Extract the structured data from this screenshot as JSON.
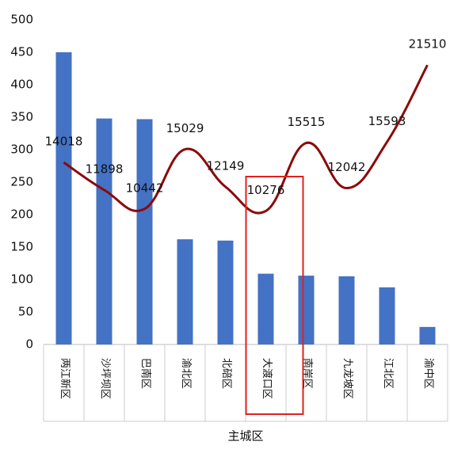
{
  "chart_data": {
    "type": "bar-line",
    "x_label": "主城区",
    "categories": [
      "两江新区",
      "沙坪坝区",
      "巴南区",
      "渝北区",
      "北碚区",
      "大渡口区",
      "南岸区",
      "九龙坡区",
      "江北区",
      "渝中区"
    ],
    "series": [
      {
        "type": "bar",
        "color": "#4472c4",
        "values": [
          450,
          348,
          347,
          162,
          160,
          109,
          106,
          105,
          88,
          27
        ]
      },
      {
        "type": "line",
        "axis": "y2",
        "color": "#8b0a0a",
        "values": [
          14018,
          11898,
          10442,
          15029,
          12149,
          10276,
          15515,
          12042,
          15593,
          21510
        ]
      }
    ],
    "ylim": [
      0,
      500
    ],
    "yticks": [
      0,
      50,
      100,
      150,
      200,
      250,
      300,
      350,
      400,
      450,
      500
    ],
    "y2lim": [
      0,
      25000
    ],
    "grid": false
  }
}
